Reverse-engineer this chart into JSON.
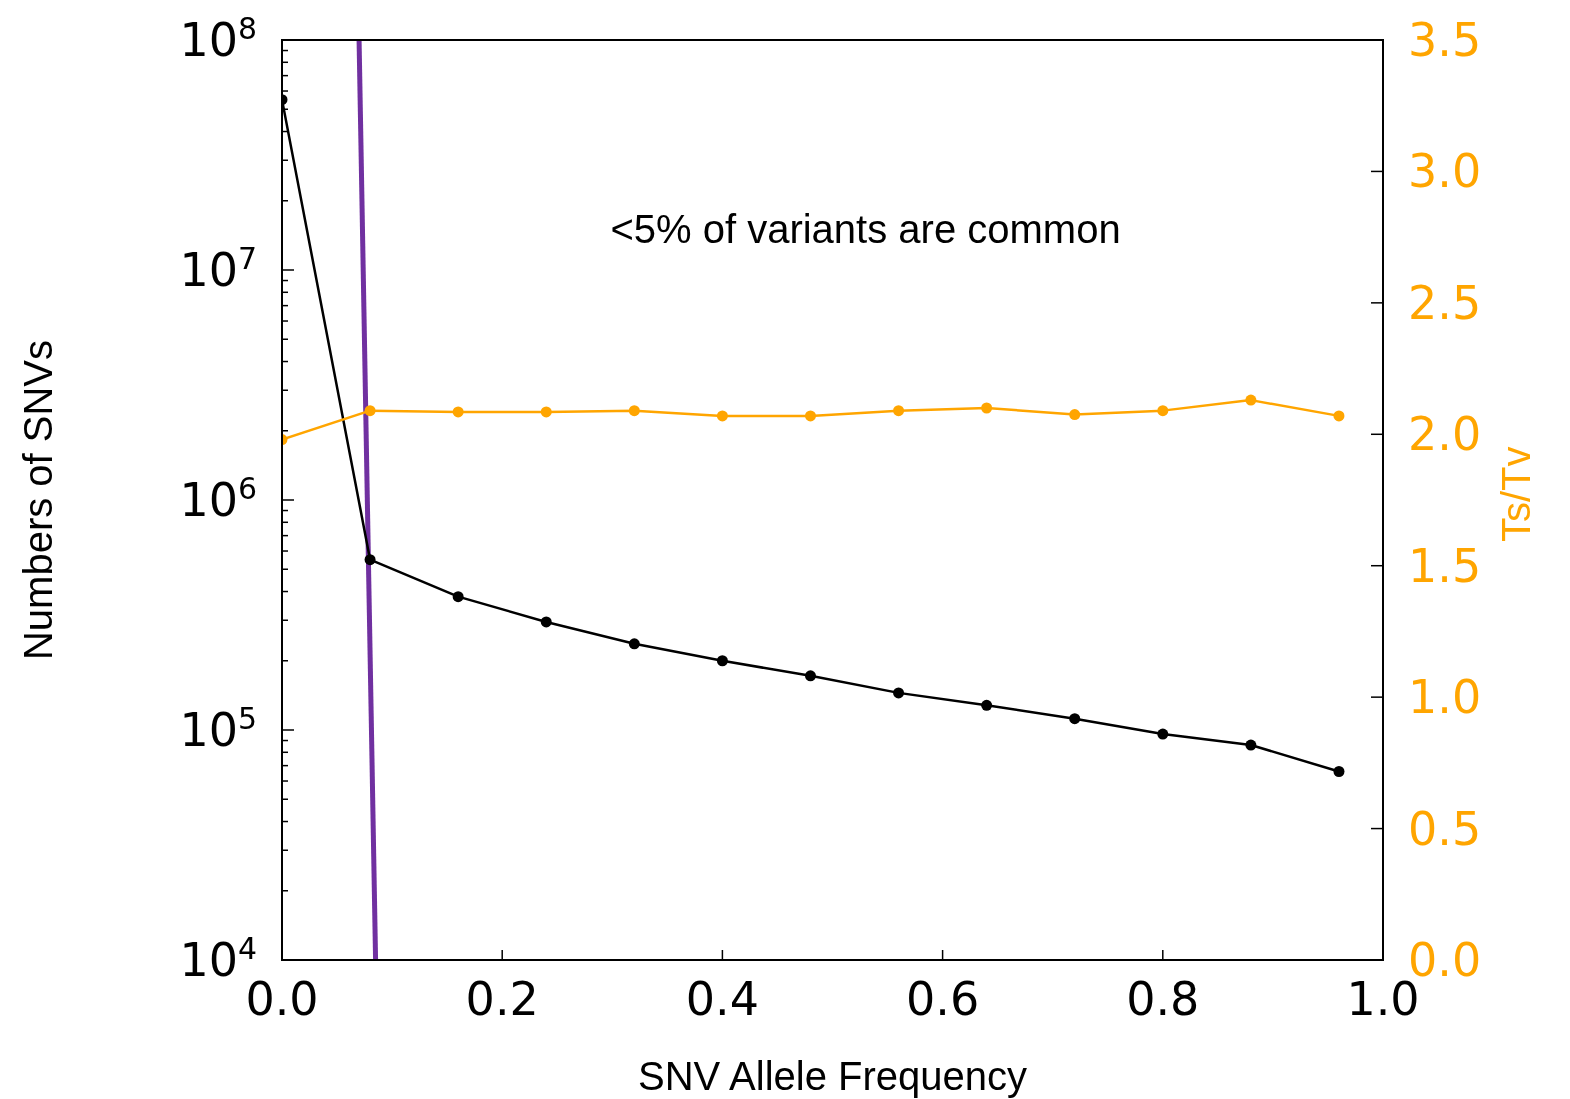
{
  "chart_data": {
    "type": "line",
    "xlabel": "SNV Allele Frequency",
    "ylabel": "Numbers of SNVs",
    "y2label": "Ts/Tv",
    "log": "y",
    "xlim": [
      0,
      1
    ],
    "ylim": [
      10000,
      100000000
    ],
    "y2lim": [
      0,
      3.5
    ],
    "xticks": [
      {
        "value": 0,
        "label": "0.0"
      },
      {
        "value": 0.2,
        "label": "0.2"
      },
      {
        "value": 0.4,
        "label": "0.4"
      },
      {
        "value": 0.6,
        "label": "0.6"
      },
      {
        "value": 0.8,
        "label": "0.8"
      },
      {
        "value": 1,
        "label": "1.0"
      }
    ],
    "yticks": [
      {
        "value": 10000,
        "label": "10$^{4}$"
      },
      {
        "value": 20000,
        "label": null
      },
      {
        "value": 30000,
        "label": null
      },
      {
        "value": 40000,
        "label": null
      },
      {
        "value": 50000,
        "label": null
      },
      {
        "value": 60000,
        "label": null
      },
      {
        "value": 70000,
        "label": null
      },
      {
        "value": 80000,
        "label": null
      },
      {
        "value": 90000,
        "label": null
      },
      {
        "value": 100000,
        "label": "10$^{5}$"
      },
      {
        "value": 200000,
        "label": null
      },
      {
        "value": 300000,
        "label": null
      },
      {
        "value": 400000,
        "label": null
      },
      {
        "value": 500000,
        "label": null
      },
      {
        "value": 600000,
        "label": null
      },
      {
        "value": 700000,
        "label": null
      },
      {
        "value": 800000,
        "label": null
      },
      {
        "value": 900000,
        "label": null
      },
      {
        "value": 1000000,
        "label": "10$^{6}$"
      },
      {
        "value": 2000000,
        "label": null
      },
      {
        "value": 3000000,
        "label": null
      },
      {
        "value": 4000000,
        "label": null
      },
      {
        "value": 5000000,
        "label": null
      },
      {
        "value": 6000000,
        "label": null
      },
      {
        "value": 7000000,
        "label": null
      },
      {
        "value": 8000000,
        "label": null
      },
      {
        "value": 9000000,
        "label": null
      },
      {
        "value": 10000000,
        "label": "10$^{7}$"
      },
      {
        "value": 20000000,
        "label": null
      },
      {
        "value": 30000000,
        "label": null
      },
      {
        "value": 40000000,
        "label": null
      },
      {
        "value": 50000000,
        "label": null
      },
      {
        "value": 60000000,
        "label": null
      },
      {
        "value": 70000000,
        "label": null
      },
      {
        "value": 80000000,
        "label": null
      },
      {
        "value": 90000000,
        "label": null
      },
      {
        "value": 100000000,
        "label": "10$^{8}$"
      }
    ],
    "y2ticks": [
      {
        "value": 0,
        "label": "0.0"
      },
      {
        "value": 0.5,
        "label": "0.5"
      },
      {
        "value": 1,
        "label": "1.0"
      },
      {
        "value": 1.5,
        "label": "1.5"
      },
      {
        "value": 2,
        "label": "2.0"
      },
      {
        "value": 2.5,
        "label": "2.5"
      },
      {
        "value": 3,
        "label": "3.0"
      },
      {
        "value": 3.5,
        "label": "3.5"
      }
    ],
    "x": [
      0,
      0.08,
      0.16,
      0.24,
      0.32,
      0.4,
      0.48,
      0.56,
      0.64,
      0.72,
      0.8,
      0.88,
      0.96
    ],
    "series": [
      {
        "color": "#000000",
        "marker": "circle",
        "values": [
          55000000,
          550000,
          380000,
          295000,
          237000,
          200000,
          172000,
          145000,
          128000,
          112000,
          96000,
          86000,
          66000
        ]
      },
      {
        "color": "#ffa500",
        "marker": "circle",
        "axis": "y2",
        "values": [
          1.98,
          2.09,
          2.085,
          2.085,
          2.09,
          2.07,
          2.07,
          2.09,
          2.1,
          2.075,
          2.09,
          2.13,
          2.07
        ]
      },
      {
        "color": "#7030a0",
        "marker": "none",
        "x": [
          0.07,
          0.085
        ],
        "values": [
          100000000,
          10000
        ]
      }
    ],
    "annotations": [
      "<5% of variants are common"
    ],
    "grid": false
  }
}
